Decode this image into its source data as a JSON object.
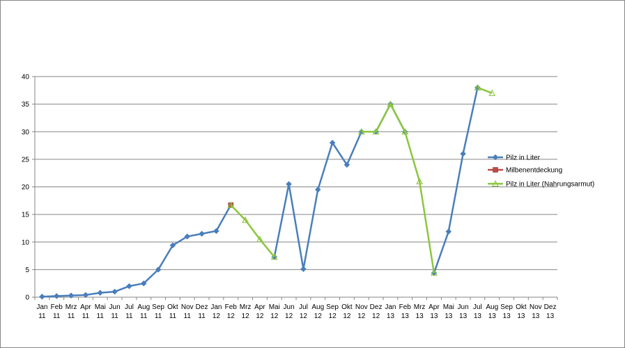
{
  "chart_data": {
    "type": "line",
    "categories": [
      [
        "Jan",
        "11"
      ],
      [
        "Feb",
        "11"
      ],
      [
        "Mrz",
        "11"
      ],
      [
        "Apr",
        "11"
      ],
      [
        "Mai",
        "11"
      ],
      [
        "Jun",
        "11"
      ],
      [
        "Jul",
        "11"
      ],
      [
        "Aug",
        "11"
      ],
      [
        "Sep",
        "11"
      ],
      [
        "Okt",
        "11"
      ],
      [
        "Nov",
        "11"
      ],
      [
        "Dez",
        "11"
      ],
      [
        "Jan",
        "12"
      ],
      [
        "Feb",
        "12"
      ],
      [
        "Mrz",
        "12"
      ],
      [
        "Apr",
        "12"
      ],
      [
        "Mai",
        "12"
      ],
      [
        "Jun",
        "12"
      ],
      [
        "Jul",
        "12"
      ],
      [
        "Aug",
        "12"
      ],
      [
        "Sep",
        "12"
      ],
      [
        "Okt",
        "12"
      ],
      [
        "Nov",
        "12"
      ],
      [
        "Dez",
        "12"
      ],
      [
        "Jan",
        "13"
      ],
      [
        "Feb",
        "13"
      ],
      [
        "Mrz",
        "13"
      ],
      [
        "Apr",
        "13"
      ],
      [
        "Mai",
        "13"
      ],
      [
        "Jun",
        "13"
      ],
      [
        "Jul",
        "13"
      ],
      [
        "Aug",
        "13"
      ],
      [
        "Sep",
        "13"
      ],
      [
        "Okt",
        "13"
      ],
      [
        "Nov",
        "13"
      ],
      [
        "Dez",
        "13"
      ]
    ],
    "ylim": [
      0,
      40
    ],
    "yticks": [
      0,
      5,
      10,
      15,
      20,
      25,
      30,
      35,
      40
    ],
    "grid": true,
    "legend_position": "right",
    "series": [
      {
        "name": "Pilz in Liter",
        "color": "#4A7EBB",
        "marker": "diamond",
        "values": [
          0.1,
          0.2,
          0.3,
          0.4,
          0.8,
          1.0,
          2.0,
          2.5,
          5.0,
          9.4,
          11.0,
          11.5,
          12.0,
          16.7,
          null,
          null,
          7.3,
          20.5,
          5.1,
          19.5,
          28.0,
          24.0,
          30.0,
          30.0,
          35.0,
          30.0,
          null,
          4.4,
          11.9,
          26.0,
          38.0,
          null,
          null,
          null,
          null,
          null
        ]
      },
      {
        "name": "Milbenentdeckung",
        "color": "#BE4B48",
        "marker": "square",
        "values": [
          null,
          null,
          null,
          null,
          null,
          null,
          null,
          null,
          null,
          null,
          null,
          null,
          null,
          16.7,
          null,
          null,
          null,
          null,
          null,
          null,
          null,
          null,
          null,
          null,
          null,
          null,
          null,
          null,
          null,
          null,
          null,
          null,
          null,
          null,
          null,
          null
        ]
      },
      {
        "name": "Pilz in Liter (Nahrungsarmut)",
        "color": "#8CC63F",
        "marker": "triangle",
        "values": [
          null,
          null,
          null,
          null,
          null,
          null,
          null,
          null,
          null,
          null,
          null,
          null,
          null,
          16.7,
          14.0,
          10.5,
          7.3,
          null,
          null,
          null,
          null,
          null,
          30.0,
          30.0,
          35.0,
          30.0,
          21.0,
          4.4,
          null,
          null,
          38.0,
          37.0,
          null,
          null,
          null,
          null
        ]
      }
    ]
  }
}
